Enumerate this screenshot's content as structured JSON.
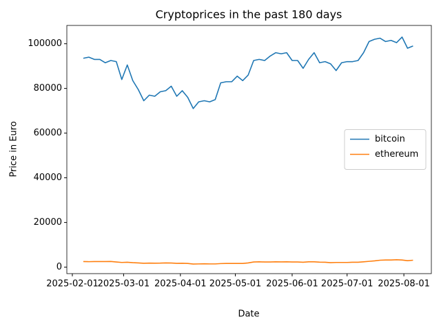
{
  "chart_data": {
    "type": "line",
    "title": "Cryptoprices in the past 180 days",
    "x_label": "Date",
    "y_label": "Price in Euro",
    "x": [
      "2025-02-07",
      "2025-02-10",
      "2025-02-13",
      "2025-02-16",
      "2025-02-19",
      "2025-02-22",
      "2025-02-25",
      "2025-02-28",
      "2025-03-03",
      "2025-03-06",
      "2025-03-09",
      "2025-03-12",
      "2025-03-15",
      "2025-03-18",
      "2025-03-21",
      "2025-03-24",
      "2025-03-27",
      "2025-03-30",
      "2025-04-02",
      "2025-04-05",
      "2025-04-08",
      "2025-04-11",
      "2025-04-14",
      "2025-04-17",
      "2025-04-20",
      "2025-04-23",
      "2025-04-26",
      "2025-04-29",
      "2025-05-02",
      "2025-05-05",
      "2025-05-08",
      "2025-05-11",
      "2025-05-14",
      "2025-05-17",
      "2025-05-20",
      "2025-05-23",
      "2025-05-26",
      "2025-05-29",
      "2025-06-01",
      "2025-06-04",
      "2025-06-07",
      "2025-06-10",
      "2025-06-13",
      "2025-06-16",
      "2025-06-19",
      "2025-06-22",
      "2025-06-25",
      "2025-06-28",
      "2025-07-01",
      "2025-07-04",
      "2025-07-07",
      "2025-07-10",
      "2025-07-13",
      "2025-07-16",
      "2025-07-19",
      "2025-07-22",
      "2025-07-25",
      "2025-07-28",
      "2025-07-31",
      "2025-08-03",
      "2025-08-06"
    ],
    "series": [
      {
        "name": "bitcoin",
        "color": "#1f77b4",
        "values": [
          93500,
          94000,
          93000,
          93000,
          91500,
          92500,
          92000,
          84000,
          90500,
          83500,
          79500,
          74500,
          77000,
          76500,
          78500,
          79000,
          81000,
          76500,
          79000,
          76000,
          71000,
          74000,
          74500,
          74000,
          75000,
          82500,
          83000,
          83000,
          85500,
          83500,
          86000,
          92500,
          93000,
          92500,
          94500,
          96000,
          95500,
          96000,
          92500,
          92500,
          89000,
          93000,
          96000,
          91500,
          92000,
          91000,
          88000,
          91500,
          92000,
          92000,
          92500,
          96000,
          101000,
          102000,
          102500,
          101000,
          101500,
          100500,
          103000,
          98000,
          99000
        ]
      },
      {
        "name": "ethereum",
        "color": "#ff7f0e",
        "values": [
          2500,
          2450,
          2500,
          2500,
          2500,
          2550,
          2300,
          2100,
          2200,
          2000,
          1900,
          1750,
          1800,
          1780,
          1800,
          1900,
          1850,
          1700,
          1750,
          1650,
          1400,
          1450,
          1500,
          1450,
          1450,
          1600,
          1650,
          1650,
          1650,
          1650,
          1900,
          2300,
          2400,
          2300,
          2300,
          2400,
          2350,
          2400,
          2300,
          2300,
          2200,
          2400,
          2400,
          2250,
          2200,
          2000,
          2100,
          2100,
          2100,
          2200,
          2200,
          2400,
          2600,
          2800,
          3100,
          3200,
          3200,
          3300,
          3200,
          2900,
          3100
        ]
      }
    ],
    "xlim": [
      "2025-01-29",
      "2025-08-16"
    ],
    "xticks": [
      "2025-02-01",
      "2025-03-01",
      "2025-04-01",
      "2025-05-01",
      "2025-06-01",
      "2025-07-01",
      "2025-08-01"
    ],
    "ylim": [
      -2900,
      108200
    ],
    "yticks": [
      0,
      20000,
      40000,
      60000,
      80000,
      100000
    ],
    "legend": "center right"
  }
}
